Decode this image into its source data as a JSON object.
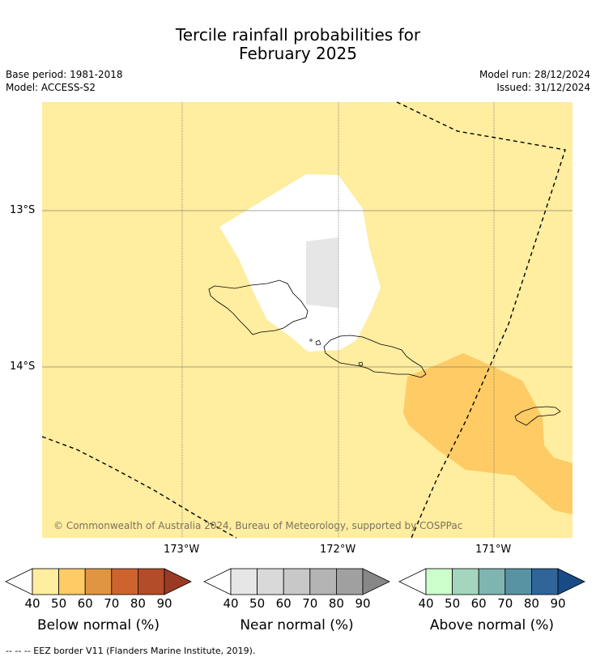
{
  "title_line1": "Tercile rainfall probabilities for",
  "title_line2": "February 2025",
  "meta": {
    "base_period": "Base period: 1981-2018",
    "model": "Model: ACCESS-S2",
    "model_run": "Model run: 28/12/2024",
    "issued": "Issued: 31/12/2024"
  },
  "map": {
    "lat_labels": [
      "13°S",
      "14°S"
    ],
    "lon_labels": [
      "173°W",
      "172°W",
      "171°W"
    ],
    "copyright": "© Commonwealth of Australia 2024, Bureau of Meteorology, supported by COSPPac",
    "colors": {
      "below_40_50": "#ffeda0",
      "below_50_60": "#fecb65",
      "near_40_50": "#e6e6e6",
      "background": "#ffffff"
    }
  },
  "colorbars": [
    {
      "title": "Below normal (%)",
      "ticks": [
        "40",
        "50",
        "60",
        "70",
        "80",
        "90"
      ],
      "colors": [
        "#ffffff",
        "#ffeda0",
        "#fecb65",
        "#e09543",
        "#cd6430",
        "#b34c28",
        "#9b3a22"
      ]
    },
    {
      "title": "Near normal (%)",
      "ticks": [
        "40",
        "50",
        "60",
        "70",
        "80",
        "90"
      ],
      "colors": [
        "#ffffff",
        "#e6e6e6",
        "#d9d9d9",
        "#c8c8c8",
        "#b4b4b4",
        "#a0a0a0",
        "#878787"
      ]
    },
    {
      "title": "Above normal (%)",
      "ticks": [
        "40",
        "50",
        "60",
        "70",
        "80",
        "90"
      ],
      "colors": [
        "#ffffff",
        "#ccffcc",
        "#a3d6bd",
        "#7fb5b0",
        "#5893a3",
        "#2f6599",
        "#164b86"
      ]
    }
  ],
  "footer": "--  --  -- EEZ border V11 (Flanders Marine Institute, 2019)."
}
